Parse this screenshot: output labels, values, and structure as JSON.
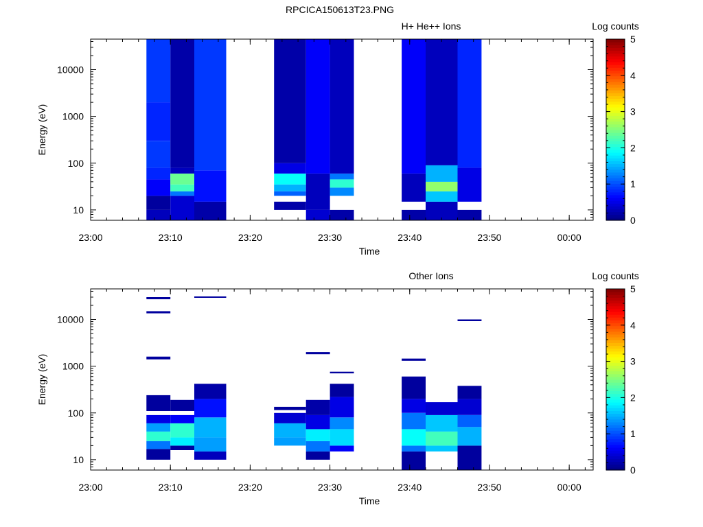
{
  "figure_title": "RPCICA150613T23.PNG",
  "colors": {
    "colormap": [
      "#00007f",
      "#0000ff",
      "#007fff",
      "#00ffff",
      "#7fff7f",
      "#ffff00",
      "#ff7f00",
      "#ff0000",
      "#7f0000"
    ],
    "background": "#ffffff",
    "axis": "#000000"
  },
  "chart_data": [
    {
      "type": "heatmap",
      "title": "H+ He++ Ions",
      "xlabel": "Time",
      "ylabel": "Energy (eV)",
      "y_scale": "log",
      "ylim": [
        6,
        45000
      ],
      "xlim": [
        "23:00",
        "00:03"
      ],
      "x_ticks": [
        "23:00",
        "23:10",
        "23:20",
        "23:30",
        "23:40",
        "23:50",
        "00:00"
      ],
      "y_ticks": [
        "10",
        "100",
        "1000",
        "10000"
      ],
      "colorbar": {
        "label": "Log counts",
        "range": [
          0,
          5
        ],
        "ticks": [
          "0",
          "1",
          "2",
          "3",
          "4",
          "5"
        ]
      },
      "columns": [
        {
          "start": "23:07",
          "end": "23:10",
          "bands": [
            {
              "e_min": 6,
              "e_max": 10,
              "value": 0.3
            },
            {
              "e_min": 10,
              "e_max": 20,
              "value": 0.15
            },
            {
              "e_min": 20,
              "e_max": 45,
              "value": 0.6
            },
            {
              "e_min": 45,
              "e_max": 80,
              "value": 0.8
            },
            {
              "e_min": 80,
              "e_max": 300,
              "value": 0.9
            },
            {
              "e_min": 300,
              "e_max": 2000,
              "value": 0.8
            },
            {
              "e_min": 2000,
              "e_max": 45000,
              "value": 0.9
            }
          ]
        },
        {
          "start": "23:10",
          "end": "23:13",
          "bands": [
            {
              "e_min": 6,
              "e_max": 20,
              "value": 0.4
            },
            {
              "e_min": 20,
              "e_max": 25,
              "value": 1.2
            },
            {
              "e_min": 25,
              "e_max": 35,
              "value": 2.2
            },
            {
              "e_min": 35,
              "e_max": 60,
              "value": 2.4
            },
            {
              "e_min": 60,
              "e_max": 80,
              "value": 0.3
            },
            {
              "e_min": 80,
              "e_max": 45000,
              "value": 0.2
            }
          ]
        },
        {
          "start": "23:13",
          "end": "23:17",
          "bands": [
            {
              "e_min": 6,
              "e_max": 15,
              "value": 0.2
            },
            {
              "e_min": 15,
              "e_max": 70,
              "value": 0.7
            },
            {
              "e_min": 70,
              "e_max": 45000,
              "value": 0.9
            }
          ]
        },
        {
          "start": "23:23",
          "end": "23:27",
          "bands": [
            {
              "e_min": 10,
              "e_max": 15,
              "value": 0.2
            },
            {
              "e_min": 20,
              "e_max": 25,
              "value": 1.1
            },
            {
              "e_min": 25,
              "e_max": 35,
              "value": 1.5
            },
            {
              "e_min": 35,
              "e_max": 60,
              "value": 1.9
            },
            {
              "e_min": 60,
              "e_max": 100,
              "value": 0.5
            },
            {
              "e_min": 100,
              "e_max": 45000,
              "value": 0.2
            }
          ]
        },
        {
          "start": "23:27",
          "end": "23:30",
          "bands": [
            {
              "e_min": 6,
              "e_max": 10,
              "value": 0.4
            },
            {
              "e_min": 10,
              "e_max": 60,
              "value": 0.3
            },
            {
              "e_min": 60,
              "e_max": 45000,
              "value": 0.6
            }
          ]
        },
        {
          "start": "23:30",
          "end": "23:33",
          "bands": [
            {
              "e_min": 6,
              "e_max": 10,
              "value": 0.2
            },
            {
              "e_min": 20,
              "e_max": 30,
              "value": 1.3
            },
            {
              "e_min": 30,
              "e_max": 45,
              "value": 2.1
            },
            {
              "e_min": 45,
              "e_max": 60,
              "value": 1.2
            },
            {
              "e_min": 60,
              "e_max": 45000,
              "value": 0.3
            }
          ]
        },
        {
          "start": "23:39",
          "end": "23:42",
          "bands": [
            {
              "e_min": 6,
              "e_max": 10,
              "value": 0.2
            },
            {
              "e_min": 15,
              "e_max": 60,
              "value": 0.3
            },
            {
              "e_min": 60,
              "e_max": 45000,
              "value": 0.6
            }
          ]
        },
        {
          "start": "23:42",
          "end": "23:46",
          "bands": [
            {
              "e_min": 6,
              "e_max": 15,
              "value": 0.3
            },
            {
              "e_min": 15,
              "e_max": 25,
              "value": 1.6
            },
            {
              "e_min": 25,
              "e_max": 40,
              "value": 2.6
            },
            {
              "e_min": 40,
              "e_max": 90,
              "value": 1.5
            },
            {
              "e_min": 90,
              "e_max": 45000,
              "value": 0.3
            }
          ]
        },
        {
          "start": "23:46",
          "end": "23:49",
          "bands": [
            {
              "e_min": 6,
              "e_max": 10,
              "value": 0.2
            },
            {
              "e_min": 15,
              "e_max": 80,
              "value": 0.5
            },
            {
              "e_min": 80,
              "e_max": 45000,
              "value": 0.8
            }
          ]
        }
      ]
    },
    {
      "type": "heatmap",
      "title": "Other Ions",
      "xlabel": "Time",
      "ylabel": "Energy (eV)",
      "y_scale": "log",
      "ylim": [
        6,
        45000
      ],
      "xlim": [
        "23:00",
        "00:03"
      ],
      "x_ticks": [
        "23:00",
        "23:10",
        "23:20",
        "23:30",
        "23:40",
        "23:50",
        "00:00"
      ],
      "y_ticks": [
        "10",
        "100",
        "1000",
        "10000"
      ],
      "colorbar": {
        "label": "Log counts",
        "range": [
          0,
          5
        ],
        "ticks": [
          "0",
          "1",
          "2",
          "3",
          "4",
          "5"
        ]
      },
      "columns": [
        {
          "start": "23:07",
          "end": "23:10",
          "bands": [
            {
              "e_min": 10,
              "e_max": 17,
              "value": 0.15
            },
            {
              "e_min": 17,
              "e_max": 25,
              "value": 1.2
            },
            {
              "e_min": 25,
              "e_max": 40,
              "value": 2.1
            },
            {
              "e_min": 40,
              "e_max": 60,
              "value": 1.4
            },
            {
              "e_min": 60,
              "e_max": 90,
              "value": 0.5
            },
            {
              "e_min": 110,
              "e_max": 240,
              "value": 0.15
            },
            {
              "e_min": 1400,
              "e_max": 1600,
              "value": 0.15
            },
            {
              "e_min": 13500,
              "e_max": 15000,
              "value": 0.15
            },
            {
              "e_min": 27000,
              "e_max": 30000,
              "value": 0.15
            }
          ]
        },
        {
          "start": "23:10",
          "end": "23:13",
          "bands": [
            {
              "e_min": 16,
              "e_max": 20,
              "value": 0.15
            },
            {
              "e_min": 20,
              "e_max": 30,
              "value": 1.8
            },
            {
              "e_min": 30,
              "e_max": 60,
              "value": 2.1
            },
            {
              "e_min": 60,
              "e_max": 90,
              "value": 0.6
            },
            {
              "e_min": 110,
              "e_max": 190,
              "value": 0.15
            }
          ]
        },
        {
          "start": "23:13",
          "end": "23:17",
          "bands": [
            {
              "e_min": 10,
              "e_max": 15,
              "value": 0.3
            },
            {
              "e_min": 15,
              "e_max": 30,
              "value": 1.4
            },
            {
              "e_min": 30,
              "e_max": 80,
              "value": 1.5
            },
            {
              "e_min": 80,
              "e_max": 200,
              "value": 0.7
            },
            {
              "e_min": 200,
              "e_max": 420,
              "value": 0.2
            },
            {
              "e_min": 29000,
              "e_max": 31000,
              "value": 0.15
            }
          ]
        },
        {
          "start": "23:23",
          "end": "23:27",
          "bands": [
            {
              "e_min": 20,
              "e_max": 30,
              "value": 1.4
            },
            {
              "e_min": 30,
              "e_max": 60,
              "value": 1.5
            },
            {
              "e_min": 60,
              "e_max": 100,
              "value": 0.4
            },
            {
              "e_min": 115,
              "e_max": 135,
              "value": 0.15
            }
          ]
        },
        {
          "start": "23:27",
          "end": "23:30",
          "bands": [
            {
              "e_min": 10,
              "e_max": 15,
              "value": 0.15
            },
            {
              "e_min": 15,
              "e_max": 25,
              "value": 1.2
            },
            {
              "e_min": 25,
              "e_max": 45,
              "value": 1.8
            },
            {
              "e_min": 45,
              "e_max": 90,
              "value": 0.5
            },
            {
              "e_min": 90,
              "e_max": 190,
              "value": 0.2
            },
            {
              "e_min": 1800,
              "e_max": 2000,
              "value": 0.15
            }
          ]
        },
        {
          "start": "23:30",
          "end": "23:33",
          "bands": [
            {
              "e_min": 15,
              "e_max": 20,
              "value": 0.6
            },
            {
              "e_min": 20,
              "e_max": 45,
              "value": 1.7
            },
            {
              "e_min": 45,
              "e_max": 80,
              "value": 1.3
            },
            {
              "e_min": 80,
              "e_max": 220,
              "value": 0.5
            },
            {
              "e_min": 220,
              "e_max": 420,
              "value": 0.15
            },
            {
              "e_min": 700,
              "e_max": 760,
              "value": 0.15
            }
          ]
        },
        {
          "start": "23:39",
          "end": "23:42",
          "bands": [
            {
              "e_min": 6,
              "e_max": 15,
              "value": 0.15
            },
            {
              "e_min": 15,
              "e_max": 20,
              "value": 1.2
            },
            {
              "e_min": 20,
              "e_max": 45,
              "value": 1.9
            },
            {
              "e_min": 45,
              "e_max": 100,
              "value": 1.2
            },
            {
              "e_min": 100,
              "e_max": 200,
              "value": 0.5
            },
            {
              "e_min": 200,
              "e_max": 600,
              "value": 0.15
            },
            {
              "e_min": 1300,
              "e_max": 1450,
              "value": 0.15
            }
          ]
        },
        {
          "start": "23:42",
          "end": "23:46",
          "bands": [
            {
              "e_min": 15,
              "e_max": 20,
              "value": 1.6
            },
            {
              "e_min": 20,
              "e_max": 40,
              "value": 2.2
            },
            {
              "e_min": 40,
              "e_max": 90,
              "value": 1.6
            },
            {
              "e_min": 90,
              "e_max": 170,
              "value": 0.4
            }
          ]
        },
        {
          "start": "23:46",
          "end": "23:49",
          "bands": [
            {
              "e_min": 6,
              "e_max": 20,
              "value": 0.15
            },
            {
              "e_min": 20,
              "e_max": 50,
              "value": 1.5
            },
            {
              "e_min": 50,
              "e_max": 90,
              "value": 1.1
            },
            {
              "e_min": 90,
              "e_max": 200,
              "value": 0.4
            },
            {
              "e_min": 200,
              "e_max": 380,
              "value": 0.15
            },
            {
              "e_min": 9200,
              "e_max": 10000,
              "value": 0.15
            }
          ]
        }
      ]
    }
  ]
}
